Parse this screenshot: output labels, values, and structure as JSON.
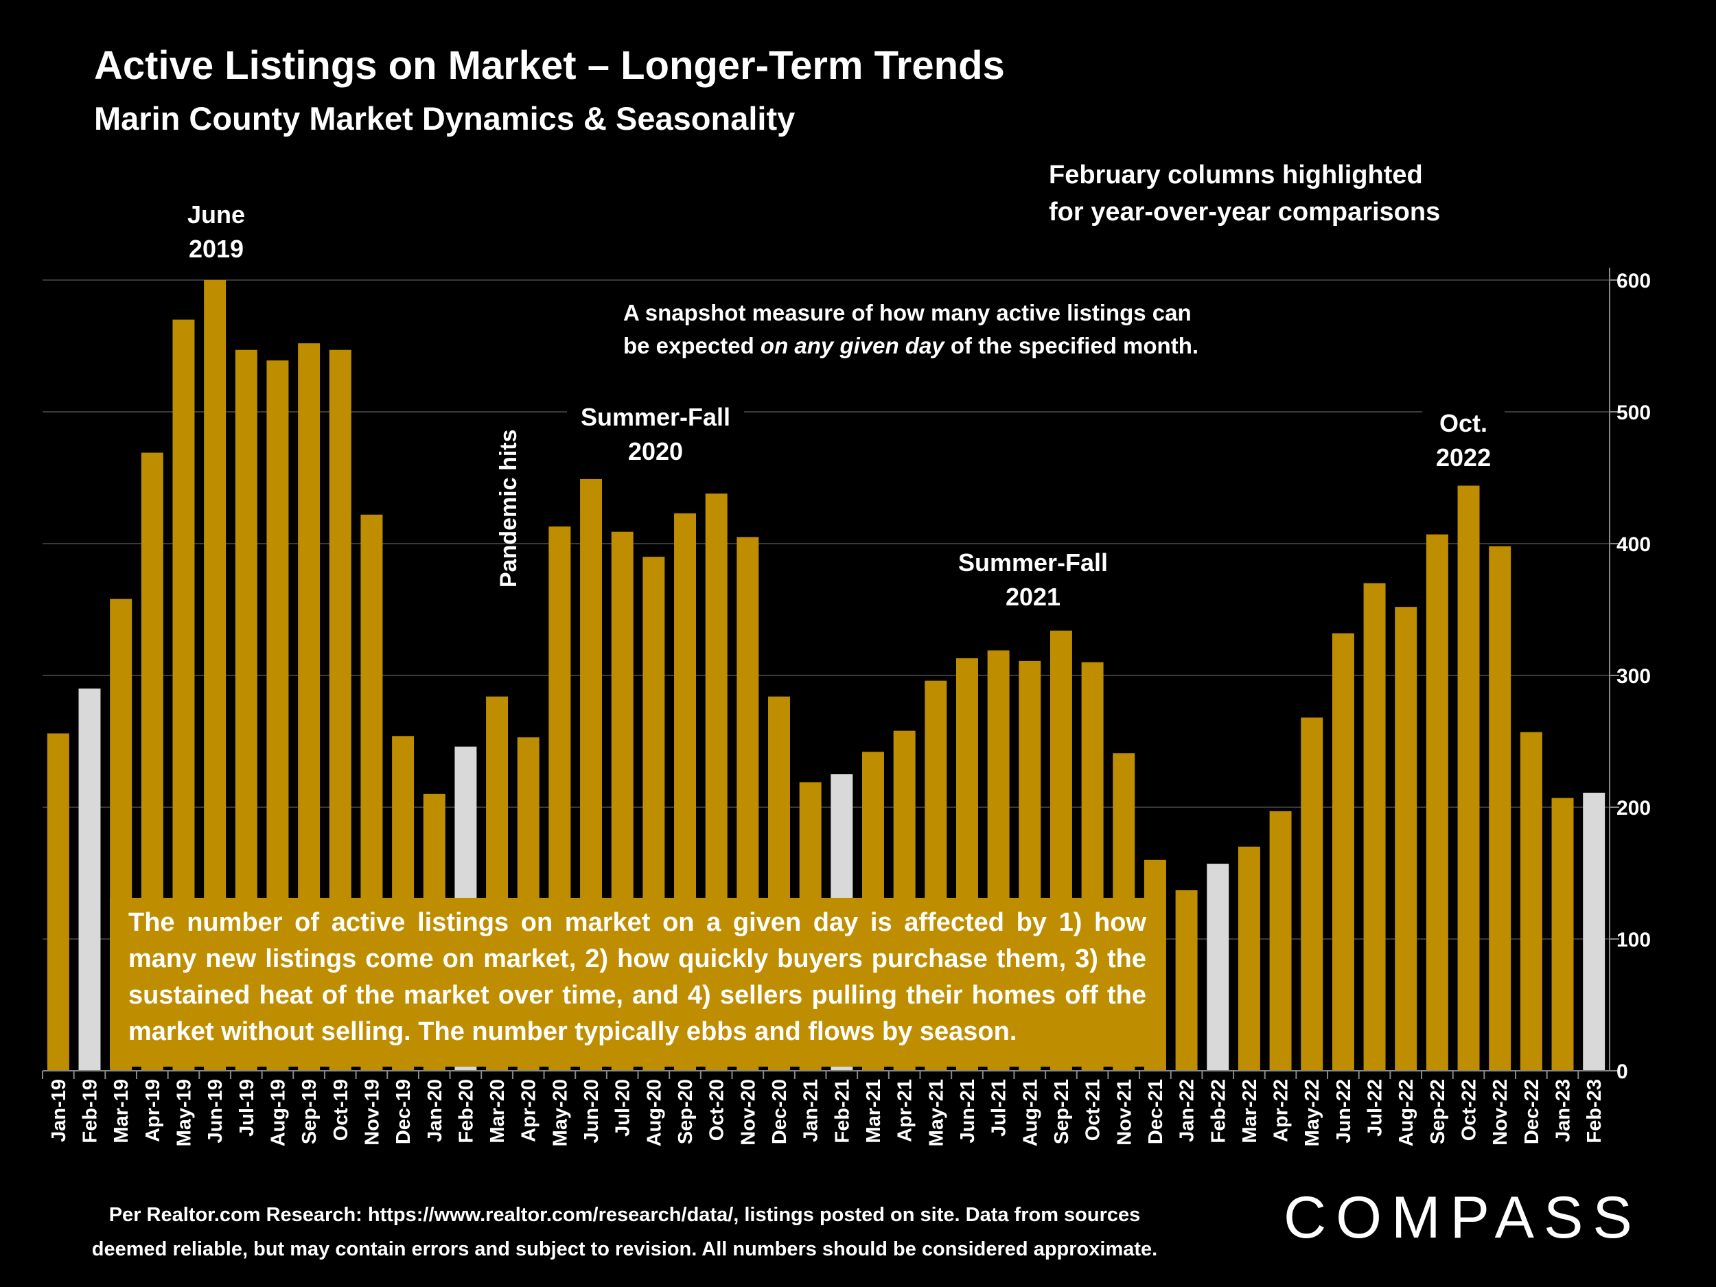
{
  "title": "Active Listings on Market – Longer-Term Trends",
  "subtitle": "Marin County Market Dynamics & Seasonality",
  "feb_note_line1": "February columns highlighted",
  "feb_note_line2": "for year-over-year comparisons",
  "snapshot_line1": "A snapshot measure of how many active listings can",
  "snapshot_line2_pre": "be expected ",
  "snapshot_line2_em": "on any given day",
  "snapshot_line2_post": " of the specified month.",
  "annotations": {
    "june2019_l1": "June",
    "june2019_l2": "2019",
    "sf2020_l1": "Summer-Fall",
    "sf2020_l2": "2020",
    "pandemic": "Pandemic hits",
    "sf2021_l1": "Summer-Fall",
    "sf2021_l2": "2021",
    "oct2022_l1": "Oct.",
    "oct2022_l2": "2022"
  },
  "info_box": "The number of active listings on market on a given day is affected by 1) how many new listings come on market, 2) how quickly buyers purchase them, 3) the sustained heat of the market over time, and 4) sellers pulling their homes off the market without selling. The number typically ebbs and flows by season.",
  "source_line1": "Per Realtor.com Research:  https://www.realtor.com/research/data/, listings posted on site. Data from sources",
  "source_line2": "deemed reliable, but may contain errors and subject to revision. All numbers should be considered approximate.",
  "logo_text": "COMPASS",
  "colors": {
    "bar": "#bf8e00",
    "highlight": "#d9d9d9",
    "background": "#000000",
    "grid": "#3a3a3a",
    "text": "#ffffff"
  },
  "chart_data": {
    "type": "bar",
    "ylim": [
      0,
      600
    ],
    "yticks": [
      0,
      100,
      200,
      300,
      400,
      500,
      600
    ],
    "y_axis_position": "right",
    "grid": true,
    "highlighted_category": "February",
    "categories": [
      "Jan-19",
      "Feb-19",
      "Mar-19",
      "Apr-19",
      "May-19",
      "Jun-19",
      "Jul-19",
      "Aug-19",
      "Sep-19",
      "Oct-19",
      "Nov-19",
      "Dec-19",
      "Jan-20",
      "Feb-20",
      "Mar-20",
      "Apr-20",
      "May-20",
      "Jun-20",
      "Jul-20",
      "Aug-20",
      "Sep-20",
      "Oct-20",
      "Nov-20",
      "Dec-20",
      "Jan-21",
      "Feb-21",
      "Mar-21",
      "Apr-21",
      "May-21",
      "Jun-21",
      "Jul-21",
      "Aug-21",
      "Sep-21",
      "Oct-21",
      "Nov-21",
      "Dec-21",
      "Jan-22",
      "Feb-22",
      "Mar-22",
      "Apr-22",
      "May-22",
      "Jun-22",
      "Jul-22",
      "Aug-22",
      "Sep-22",
      "Oct-22",
      "Nov-22",
      "Dec-22",
      "Jan-23",
      "Feb-23"
    ],
    "values": [
      256,
      290,
      358,
      469,
      570,
      600,
      547,
      539,
      552,
      547,
      422,
      254,
      210,
      246,
      284,
      253,
      413,
      449,
      409,
      390,
      423,
      438,
      405,
      284,
      219,
      225,
      242,
      258,
      296,
      313,
      319,
      311,
      334,
      310,
      241,
      160,
      137,
      157,
      170,
      197,
      268,
      332,
      370,
      352,
      407,
      444,
      398,
      257,
      207,
      211
    ]
  }
}
